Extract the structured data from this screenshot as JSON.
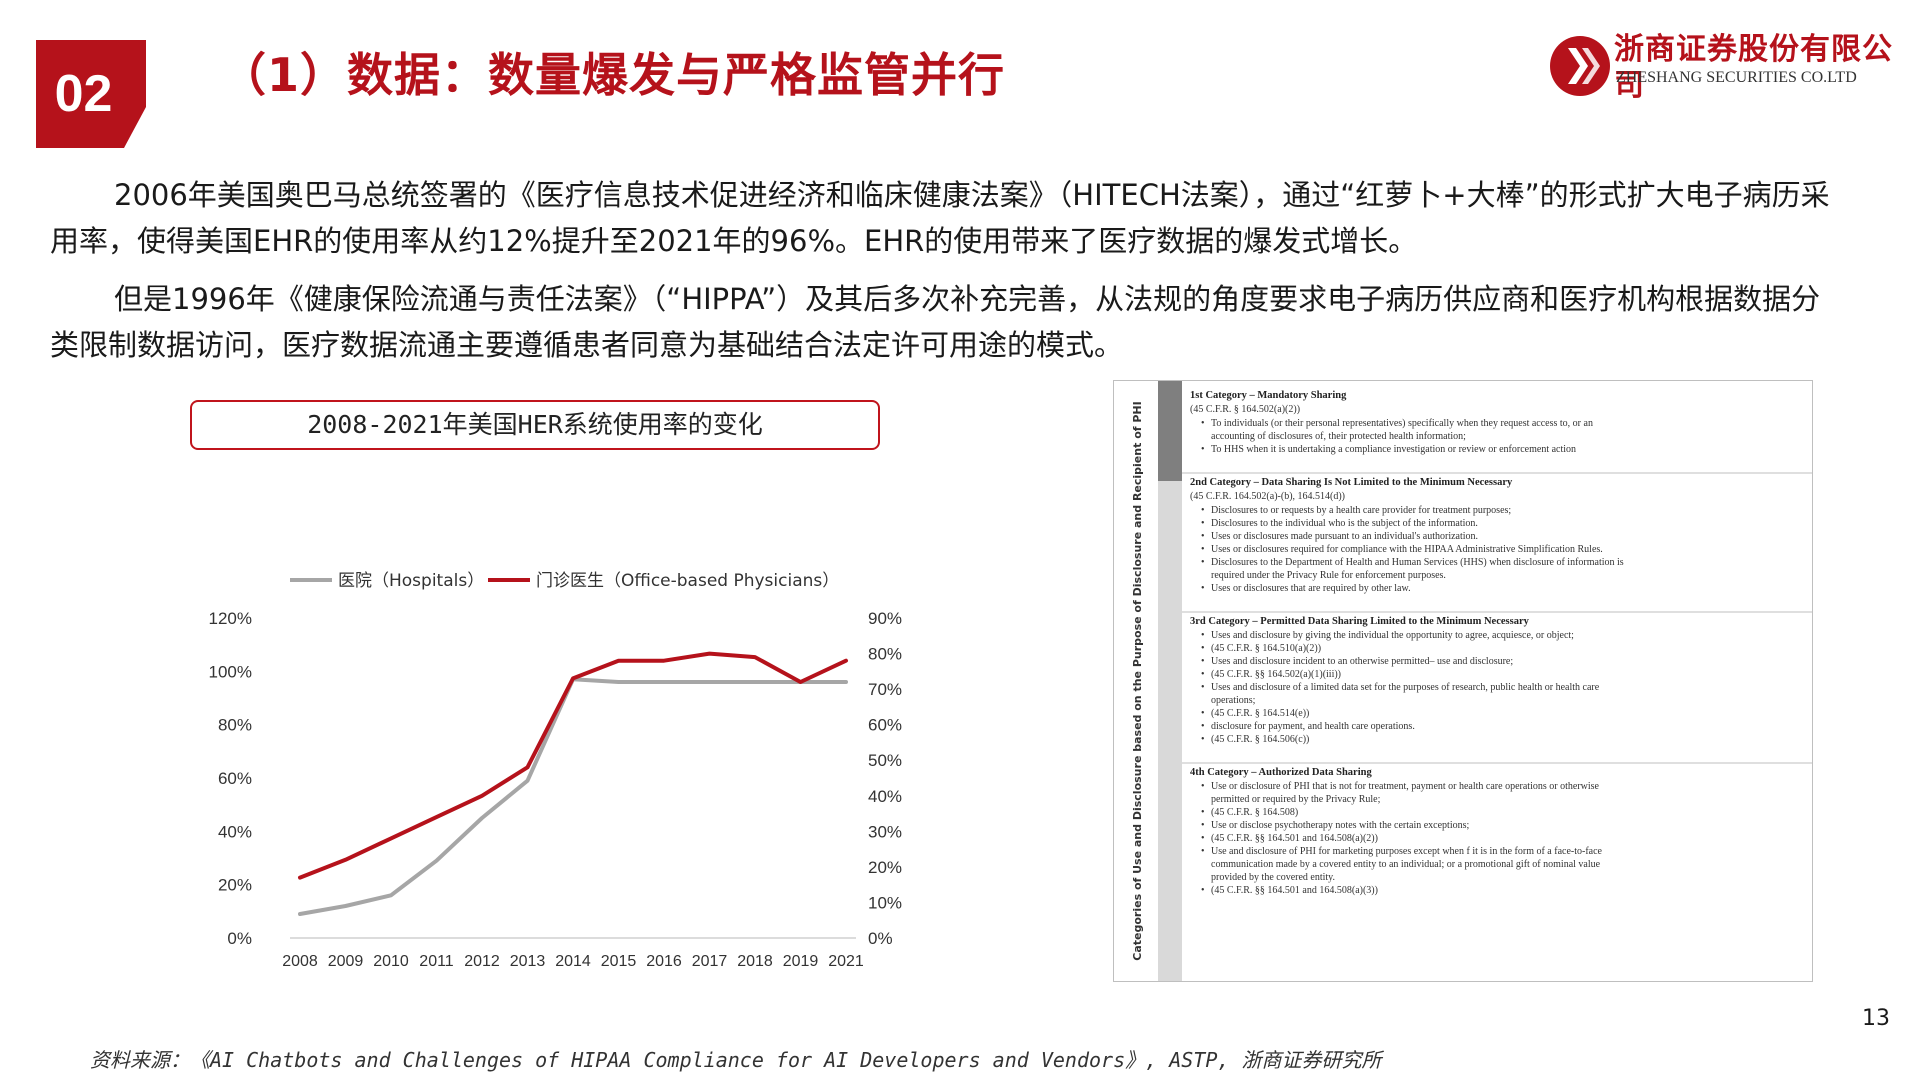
{
  "header": {
    "section_number": "02",
    "title": "（1）数据：数量爆发与严格监管并行",
    "company_cn": "浙商证券股份有限公司",
    "company_en": "ZHESHANG SECURITIES CO.LTD"
  },
  "body": {
    "paragraph1": "2006年美国奥巴马总统签署的《医疗信息技术促进经济和临床健康法案》（HITECH法案），通过“红萝卜+大棒”的形式扩大电子病历采用率，使得美国EHR的使用率从约12%提升至2021年的96%。EHR的使用带来了医疗数据的爆发式增长。",
    "paragraph2": "但是1996年《健康保险流通与责任法案》（“HIPPA”）及其后多次补充完善，从法规的角度要求电子病历供应商和医疗机构根据数据分类限制数据访问，医疗数据流通主要遵循患者同意为基础结合法定许可用途的模式。"
  },
  "chart_box_title": "2008-2021年美国HER系统使用率的变化",
  "chart_data": {
    "type": "line",
    "x": [
      2008,
      2009,
      2010,
      2011,
      2012,
      2013,
      2014,
      2015,
      2016,
      2017,
      2018,
      2019,
      2021
    ],
    "x_labels": [
      "2008",
      "2009",
      "2010",
      "2011",
      "2012",
      "2013",
      "2014",
      "2015",
      "2016",
      "2017",
      "2018",
      "2019",
      "2021"
    ],
    "series": [
      {
        "name": "医院（Hospitals）",
        "axis": "left",
        "color": "#a6a6a6",
        "values": [
          9,
          12,
          16,
          29,
          45,
          59,
          97,
          96,
          96,
          96,
          96,
          96,
          96
        ]
      },
      {
        "name": "门诊医生（Office-based Physicians）",
        "axis": "right",
        "color": "#b5121b",
        "values": [
          17,
          22,
          28,
          34,
          40,
          48,
          73,
          78,
          78,
          80,
          79,
          72,
          78
        ]
      }
    ],
    "y_left": {
      "min": 0,
      "max": 120,
      "ticks": [
        "0%",
        "20%",
        "40%",
        "60%",
        "80%",
        "100%",
        "120%"
      ]
    },
    "y_right": {
      "min": 0,
      "max": 90,
      "ticks": [
        "0%",
        "10%",
        "20%",
        "30%",
        "40%",
        "50%",
        "60%",
        "70%",
        "80%",
        "90%"
      ]
    },
    "legend_position": "top",
    "grid": false
  },
  "table": {
    "side_label": "Categories of Use and Disclosure based on the Purpose of Disclosure and Recipient of PHI",
    "categories": [
      {
        "title": "1st Category – Mandatory Sharing",
        "ref": "(45 C.F.R. § 164.502(a)(2))",
        "items": [
          "To individuals (or their personal representatives) specifically when they request access to, or an accounting of disclosures of, their protected health information;",
          "To HHS when it is undertaking a compliance investigation or review or enforcement action"
        ]
      },
      {
        "title": "2nd Category – Data Sharing Is Not Limited to the Minimum Necessary",
        "ref": "(45 C.F.R. 164.502(a)-(b), 164.514(d))",
        "items": [
          "Disclosures to or requests by a health care provider for treatment purposes;",
          "Disclosures to the individual who is the subject of the information.",
          "Uses or disclosures made pursuant to an individual's authorization.",
          "Uses or disclosures required for compliance with the HIPAA Administrative Simplification Rules.",
          "Disclosures to the Department of Health and Human Services (HHS) when disclosure of information is required under the Privacy Rule for enforcement purposes.",
          "Uses or disclosures that are required by other law."
        ]
      },
      {
        "title": "3rd Category – Permitted Data Sharing Limited to the Minimum Necessary",
        "ref": "",
        "items": [
          "Uses and disclosure by giving the individual the opportunity to agree, acquiesce, or object;",
          "(45 C.F.R. § 164.510(a)(2))",
          "Uses and disclosure incident to an otherwise permitted– use and disclosure;",
          "(45 C.F.R. §§ 164.502(a)(1)(iii))",
          "Uses and disclosure of a limited data set for the purposes of research, public health or health care operations;",
          "(45 C.F.R. § 164.514(e))",
          "disclosure for payment, and health care operations.",
          "(45 C.F.R. § 164.506(c))"
        ]
      },
      {
        "title": "4th Category – Authorized Data Sharing",
        "ref": "",
        "items": [
          "Use or disclosure of PHI that is not for treatment, payment or health care operations or otherwise permitted or required by the Privacy Rule;",
          "(45 C.F.R. § 164.508)",
          "Use or disclose psychotherapy notes with the certain exceptions;",
          "(45 C.F.R. §§ 164.501 and 164.508(a)(2))",
          "Use and disclosure of PHI for marketing purposes except when f it is in the form of a face-to-face communication made by a covered entity to an individual; or a promotional gift of nominal value provided by the covered entity.",
          "(45 C.F.R. §§ 164.501 and 164.508(a)(3))"
        ]
      }
    ]
  },
  "page_number": "13",
  "source": "资料来源：《AI Chatbots and Challenges of HIPAA Compliance for AI Developers and Vendors》, ASTP, 浙商证券研究所",
  "colors": {
    "brand_red": "#b5121b",
    "hospital_gray": "#a6a6a6"
  }
}
